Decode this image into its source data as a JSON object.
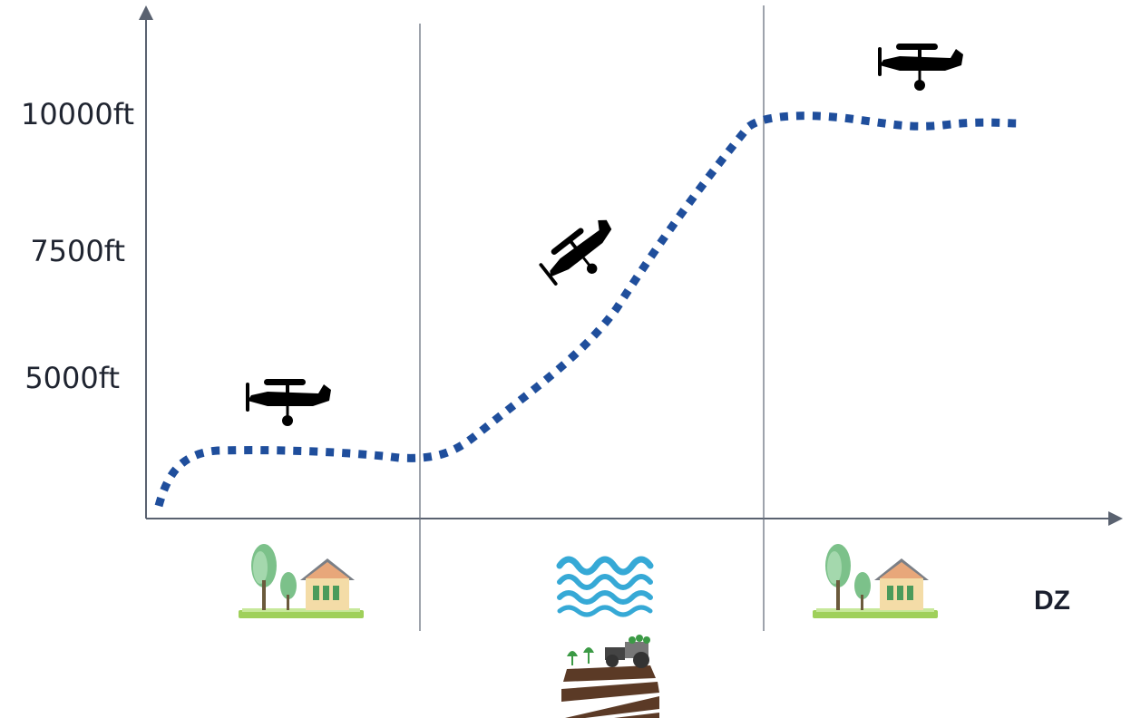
{
  "chart_data": {
    "type": "line",
    "ylabel_ticks": [
      "10000ft",
      "7500ft",
      "5000ft"
    ],
    "end_label": "DZ",
    "segments": [
      "village",
      "water-and-farmland",
      "village"
    ],
    "path_style": "dotted",
    "colors": {
      "path": "#1f4e9c",
      "axes": "#5a6270",
      "dividers": "#6b7280",
      "text": "#1f2430"
    }
  },
  "icons": [
    "plane-icon",
    "plane-climbing-icon",
    "plane-icon",
    "village-icon",
    "water-waves-icon",
    "farm-field-icon",
    "village-icon"
  ]
}
